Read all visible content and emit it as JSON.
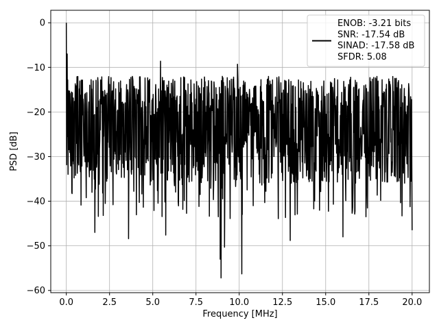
{
  "chart_data": {
    "type": "line",
    "title": "",
    "xlabel": "Frequency [MHz]",
    "ylabel": "PSD [dB]",
    "xlim": [
      -0.9,
      21.0
    ],
    "ylim": [
      -60.5,
      2.8
    ],
    "grid": true,
    "legend_position": "top-right",
    "line_color": "#000000",
    "xticks": [
      0.0,
      2.5,
      5.0,
      7.5,
      10.0,
      12.5,
      15.0,
      17.5,
      20.0
    ],
    "xtick_labels": [
      "0.0",
      "2.5",
      "5.0",
      "7.5",
      "10.0",
      "12.5",
      "15.0",
      "17.5",
      "20.0"
    ],
    "yticks": [
      0,
      -10,
      -20,
      -30,
      -40,
      -50,
      -60
    ],
    "ytick_labels": [
      "0",
      "−10",
      "−20",
      "−30",
      "−40",
      "−50",
      "−60"
    ],
    "series": [
      {
        "name": "ENOB: -3.21 bits\nSNR: -17.54 dB\nSINAD: -17.58 dB\nSFDR: 5.08",
        "legend_lines": [
          "ENOB: -3.21 bits",
          "SNR: -17.54 dB",
          "SINAD: -17.58 dB",
          "SFDR: 5.08"
        ],
        "x_range": [
          0.0,
          20.0
        ],
        "num_points": 1200,
        "peaks": [
          {
            "x": 0.0,
            "y": 0.0
          },
          {
            "x": 0.05,
            "y": -7.0
          },
          {
            "x": 0.08,
            "y": -12.8
          },
          {
            "x": 5.45,
            "y": -8.6
          },
          {
            "x": 9.9,
            "y": -9.3
          },
          {
            "x": 20.0,
            "y": -10.8
          }
        ],
        "troughs": [
          {
            "x": 8.9,
            "y": -53.0
          },
          {
            "x": 8.95,
            "y": -57.2
          },
          {
            "x": 9.15,
            "y": -50.3
          },
          {
            "x": 10.15,
            "y": -56.3
          },
          {
            "x": 12.95,
            "y": -48.8
          },
          {
            "x": 3.6,
            "y": -48.4
          },
          {
            "x": 5.75,
            "y": -47.6
          },
          {
            "x": 1.65,
            "y": -47.0
          },
          {
            "x": 16.0,
            "y": -48.0
          },
          {
            "x": 20.0,
            "y": -46.5
          }
        ],
        "noise_band": {
          "upper": -12.0,
          "lower": -36.0,
          "center": -23.0
        }
      }
    ]
  }
}
